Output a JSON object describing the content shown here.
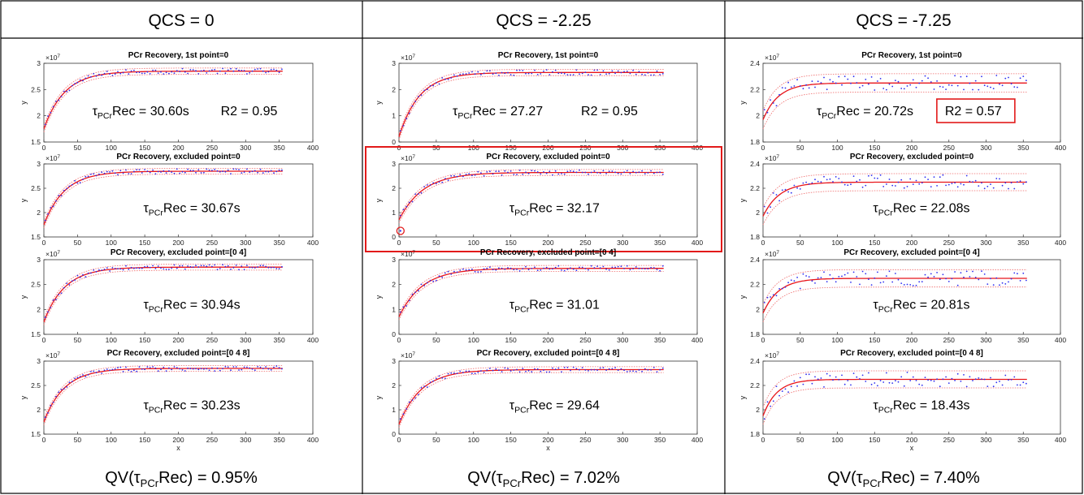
{
  "colors": {
    "fit": "#e8141a",
    "bounds": "#ef6a6a",
    "points": "#2e2ef0",
    "highlight": "#e21a1a",
    "grid": "#000000"
  },
  "columns": [
    {
      "header": "QCS = 0",
      "footer": {
        "prefix": "QV(τ",
        "sub": "PCr",
        "suffix": "Rec) = 0.95%"
      }
    },
    {
      "header": "QCS = -2.25",
      "footer": {
        "prefix": "QV(τ",
        "sub": "PCr",
        "suffix": "Rec) = 7.02%"
      }
    },
    {
      "header": "QCS = -7.25",
      "footer": {
        "prefix": "QV(τ",
        "sub": "PCr",
        "suffix": "Rec) = 7.40%"
      }
    }
  ],
  "chart_data": [
    {
      "type": "scatter",
      "column": 0,
      "row": 0,
      "title": "PCr Recovery, 1st point=0",
      "xlabel": "",
      "ylabel": "y",
      "exponent": "×10^7",
      "xlim": [
        0,
        400
      ],
      "ylim": [
        1.5,
        3
      ],
      "xticks": [
        "0",
        "50",
        "100",
        "150",
        "200",
        "250",
        "300",
        "350",
        "400"
      ],
      "yticks": [
        "1.5",
        "2",
        "2.5",
        "3"
      ],
      "fit": {
        "y0": 1.75,
        "yinf": 2.85,
        "tau": 30.6,
        "band": 0.06
      },
      "annotation": {
        "prefix": "τ",
        "sub": "PCr",
        "suffix": "Rec = 30.60s",
        "r2": "R2 = 0.95",
        "r2_boxed": false
      }
    },
    {
      "type": "scatter",
      "column": 0,
      "row": 1,
      "title": "PCr Recovery, excluded point=0",
      "xlabel": "",
      "ylabel": "y",
      "exponent": "×10^7",
      "xlim": [
        0,
        400
      ],
      "ylim": [
        1.5,
        3
      ],
      "xticks": [
        "0",
        "50",
        "100",
        "150",
        "200",
        "250",
        "300",
        "350",
        "400"
      ],
      "yticks": [
        "1.5",
        "2",
        "2.5",
        "3"
      ],
      "fit": {
        "y0": 1.75,
        "yinf": 2.85,
        "tau": 30.67,
        "band": 0.06
      },
      "annotation": {
        "prefix": "τ",
        "sub": "PCr",
        "suffix": "Rec = 30.67s"
      }
    },
    {
      "type": "scatter",
      "column": 0,
      "row": 2,
      "title": "PCr Recovery, excluded point=[0 4]",
      "xlabel": "",
      "ylabel": "y",
      "exponent": "×10^7",
      "xlim": [
        0,
        400
      ],
      "ylim": [
        1.5,
        3
      ],
      "xticks": [
        "0",
        "50",
        "100",
        "150",
        "200",
        "250",
        "300",
        "350",
        "400"
      ],
      "yticks": [
        "1.5",
        "2",
        "2.5",
        "3"
      ],
      "fit": {
        "y0": 1.75,
        "yinf": 2.85,
        "tau": 30.94,
        "band": 0.06
      },
      "annotation": {
        "prefix": "τ",
        "sub": "PCr",
        "suffix": "Rec = 30.94s"
      }
    },
    {
      "type": "scatter",
      "column": 0,
      "row": 3,
      "title": "PCr Recovery, excluded point=[0 4 8]",
      "xlabel": "x",
      "ylabel": "y",
      "exponent": "×10^7",
      "xlim": [
        0,
        400
      ],
      "ylim": [
        1.5,
        3
      ],
      "xticks": [
        "0",
        "50",
        "100",
        "150",
        "200",
        "250",
        "300",
        "350",
        "400"
      ],
      "yticks": [
        "1.5",
        "2",
        "2.5",
        "3"
      ],
      "fit": {
        "y0": 1.75,
        "yinf": 2.85,
        "tau": 30.23,
        "band": 0.06
      },
      "annotation": {
        "prefix": "τ",
        "sub": "PCr",
        "suffix": "Rec = 30.23s"
      }
    },
    {
      "type": "scatter",
      "column": 1,
      "row": 0,
      "title": "PCr Recovery, 1st point=0",
      "xlabel": "",
      "ylabel": "y",
      "exponent": "×10^7",
      "xlim": [
        0,
        400
      ],
      "ylim": [
        0,
        3
      ],
      "xticks": [
        "0",
        "50",
        "100",
        "150",
        "200",
        "250",
        "300",
        "350",
        "400"
      ],
      "yticks": [
        "0",
        "1",
        "2",
        "3"
      ],
      "fit": {
        "y0": 0.2,
        "yinf": 2.65,
        "tau": 27.27,
        "band": 0.12
      },
      "annotation": {
        "prefix": "τ",
        "sub": "PCr",
        "suffix": "Rec = 27.27",
        "r2": "R2 = 0.95",
        "r2_boxed": false
      }
    },
    {
      "type": "scatter",
      "column": 1,
      "row": 1,
      "title": "PCr Recovery, excluded point=0",
      "xlabel": "",
      "ylabel": "y",
      "exponent": "×10^7",
      "xlim": [
        0,
        400
      ],
      "ylim": [
        0,
        3
      ],
      "xticks": [
        "0",
        "50",
        "100",
        "150",
        "200",
        "250",
        "300",
        "350",
        "400"
      ],
      "yticks": [
        "0",
        "1",
        "2",
        "3"
      ],
      "fit": {
        "y0": 0.7,
        "yinf": 2.65,
        "tau": 32.17,
        "band": 0.12
      },
      "highlighted": true,
      "outlier": {
        "x": 2,
        "y": 0.25
      },
      "annotation": {
        "prefix": "τ",
        "sub": "PCr",
        "suffix": "Rec = 32.17"
      }
    },
    {
      "type": "scatter",
      "column": 1,
      "row": 2,
      "title": "PCr Recovery, excluded point=[0 4]",
      "xlabel": "",
      "ylabel": "y",
      "exponent": "×10^7",
      "xlim": [
        0,
        400
      ],
      "ylim": [
        0,
        3
      ],
      "xticks": [
        "0",
        "50",
        "100",
        "150",
        "200",
        "250",
        "300",
        "350",
        "400"
      ],
      "yticks": [
        "0",
        "1",
        "2",
        "3"
      ],
      "fit": {
        "y0": 0.7,
        "yinf": 2.65,
        "tau": 31.01,
        "band": 0.12
      },
      "annotation": {
        "prefix": "τ",
        "sub": "PCr",
        "suffix": "Rec = 31.01"
      }
    },
    {
      "type": "scatter",
      "column": 1,
      "row": 3,
      "title": "PCr Recovery, excluded point=[0 4 8]",
      "xlabel": "x",
      "ylabel": "y",
      "exponent": "×10^7",
      "xlim": [
        0,
        400
      ],
      "ylim": [
        0,
        3
      ],
      "xticks": [
        "0",
        "50",
        "100",
        "150",
        "200",
        "250",
        "300",
        "350",
        "400"
      ],
      "yticks": [
        "0",
        "1",
        "2",
        "3"
      ],
      "fit": {
        "y0": 0.4,
        "yinf": 2.65,
        "tau": 29.64,
        "band": 0.12
      },
      "annotation": {
        "prefix": "τ",
        "sub": "PCr",
        "suffix": "Rec = 29.64"
      }
    },
    {
      "type": "scatter",
      "column": 2,
      "row": 0,
      "title": "PCr Recovery, 1st point=0",
      "xlabel": "",
      "ylabel": "y",
      "exponent": "×10^7",
      "xlim": [
        0,
        400
      ],
      "ylim": [
        1.8,
        2.4
      ],
      "xticks": [
        "0",
        "50",
        "100",
        "150",
        "200",
        "250",
        "300",
        "350",
        "400"
      ],
      "yticks": [
        "1.8",
        "2",
        "2.2",
        "2.4"
      ],
      "fit": {
        "y0": 1.97,
        "yinf": 2.25,
        "tau": 20.72,
        "band": 0.07
      },
      "annotation": {
        "prefix": "τ",
        "sub": "PCr",
        "suffix": "Rec = 20.72s",
        "r2": "R2 = 0.57",
        "r2_boxed": true
      }
    },
    {
      "type": "scatter",
      "column": 2,
      "row": 1,
      "title": "PCr Recovery, excluded point=0",
      "xlabel": "",
      "ylabel": "y",
      "exponent": "×10^7",
      "xlim": [
        0,
        400
      ],
      "ylim": [
        1.8,
        2.4
      ],
      "xticks": [
        "0",
        "50",
        "100",
        "150",
        "200",
        "250",
        "300",
        "350",
        "400"
      ],
      "yticks": [
        "1.8",
        "2",
        "2.2",
        "2.4"
      ],
      "fit": {
        "y0": 1.97,
        "yinf": 2.25,
        "tau": 22.08,
        "band": 0.07
      },
      "annotation": {
        "prefix": "τ",
        "sub": "PCr",
        "suffix": "Rec = 22.08s"
      }
    },
    {
      "type": "scatter",
      "column": 2,
      "row": 2,
      "title": "PCr Recovery, excluded point=[0 4]",
      "xlabel": "",
      "ylabel": "y",
      "exponent": "×10^7",
      "xlim": [
        0,
        400
      ],
      "ylim": [
        1.8,
        2.4
      ],
      "xticks": [
        "0",
        "50",
        "100",
        "150",
        "200",
        "250",
        "300",
        "350",
        "400"
      ],
      "yticks": [
        "1.8",
        "2",
        "2.2",
        "2.4"
      ],
      "fit": {
        "y0": 1.97,
        "yinf": 2.25,
        "tau": 20.81,
        "band": 0.07
      },
      "annotation": {
        "prefix": "τ",
        "sub": "PCr",
        "suffix": "Rec = 20.81s"
      }
    },
    {
      "type": "scatter",
      "column": 2,
      "row": 3,
      "title": "PCr Recovery, excluded point=[0 4 8]",
      "xlabel": "x",
      "ylabel": "y",
      "exponent": "×10^7",
      "xlim": [
        0,
        400
      ],
      "ylim": [
        1.8,
        2.4
      ],
      "xticks": [
        "0",
        "50",
        "100",
        "150",
        "200",
        "250",
        "300",
        "350",
        "400"
      ],
      "yticks": [
        "1.8",
        "2",
        "2.2",
        "2.4"
      ],
      "fit": {
        "y0": 1.95,
        "yinf": 2.25,
        "tau": 18.43,
        "band": 0.07
      },
      "annotation": {
        "prefix": "τ",
        "sub": "PCr",
        "suffix": "Rec = 18.43s"
      }
    }
  ]
}
